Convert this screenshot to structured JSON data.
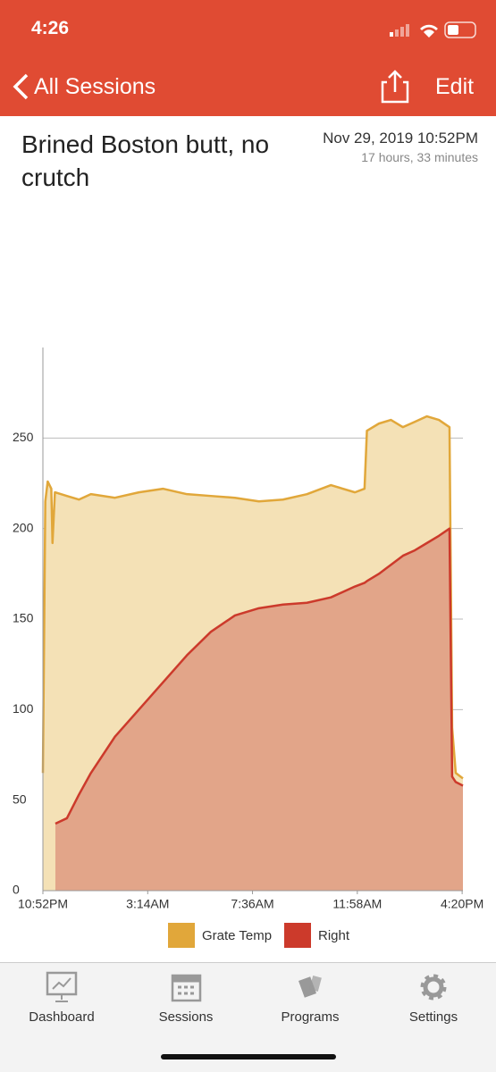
{
  "status_bar": {
    "time": "4:26"
  },
  "nav": {
    "back": "All Sessions",
    "edit": "Edit"
  },
  "header": {
    "title": "Brined Boston butt, no crutch",
    "date": "Nov 29, 2019 10:52PM",
    "duration": "17 hours, 33 minutes"
  },
  "chart_data": {
    "type": "area",
    "x": [
      0,
      0.1,
      0.2,
      0.35,
      0.4,
      0.5,
      0.52,
      1,
      1.5,
      2,
      3,
      4,
      5,
      6,
      7,
      8,
      9,
      10,
      11,
      12,
      13,
      13.4,
      13.5,
      14,
      14.5,
      15,
      15.5,
      16,
      16.5,
      16.94,
      17.05,
      17.2,
      17.5
    ],
    "series": [
      {
        "name": "Grate Temp",
        "color": "#e1a73a",
        "fill": "#f4e1b6",
        "values": [
          65,
          215,
          226,
          222,
          192,
          220,
          220,
          218,
          216,
          219,
          217,
          220,
          222,
          219,
          218,
          217,
          215,
          216,
          219,
          224,
          220,
          222,
          254,
          258,
          260,
          256,
          259,
          262,
          260,
          256,
          90,
          65,
          62
        ]
      },
      {
        "name": "Right",
        "color": "#cc3a2b",
        "fill": "#e2a589",
        "values": [
          null,
          null,
          null,
          null,
          null,
          null,
          37,
          40,
          53,
          65,
          85,
          100,
          115,
          130,
          143,
          152,
          156,
          158,
          159,
          162,
          168,
          170,
          171,
          175,
          180,
          185,
          188,
          192,
          196,
          200,
          63,
          60,
          58
        ]
      }
    ],
    "xlim": [
      0,
      17.5
    ],
    "xticks": [
      {
        "value": 0,
        "label": "10:52PM"
      },
      {
        "value": 4.367,
        "label": "3:14AM"
      },
      {
        "value": 8.733,
        "label": "7:36AM"
      },
      {
        "value": 13.1,
        "label": "11:58AM"
      },
      {
        "value": 17.467,
        "label": "4:20PM"
      }
    ],
    "ylim": [
      0,
      300
    ],
    "yticks": [
      0,
      50,
      100,
      150,
      200,
      250
    ],
    "grid": true
  },
  "tab_bar": {
    "tabs": [
      "Dashboard",
      "Sessions",
      "Programs",
      "Settings"
    ]
  }
}
